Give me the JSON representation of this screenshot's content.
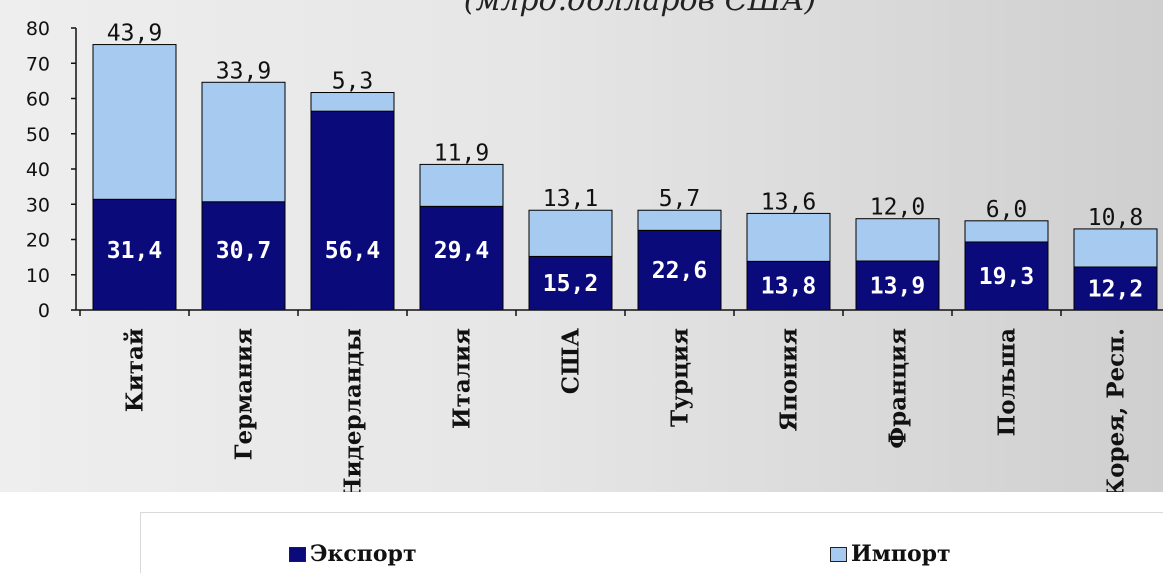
{
  "chart_data": {
    "type": "bar",
    "stacked": true,
    "title": "(млрд.долларов США)",
    "ylim": [
      0,
      80
    ],
    "yticks": [
      0,
      10,
      20,
      30,
      40,
      50,
      60,
      70,
      80
    ],
    "categories": [
      "Китай",
      "Германия",
      "Нидерланды",
      "Италия",
      "США",
      "Турция",
      "Япония",
      "Франция",
      "Польша",
      "Корея, Респ."
    ],
    "series": [
      {
        "name": "Экспорт",
        "color": "#0a0a7a",
        "values": [
          31.4,
          30.7,
          56.4,
          29.4,
          15.2,
          22.6,
          13.8,
          13.9,
          19.3,
          12.2
        ],
        "labels": [
          "31,4",
          "30,7",
          "56,4",
          "29,4",
          "15,2",
          "22,6",
          "13,8",
          "13,9",
          "19,3",
          "12,2"
        ]
      },
      {
        "name": "Импорт",
        "color": "#a6caf0",
        "values": [
          43.9,
          33.9,
          5.3,
          11.9,
          13.1,
          5.7,
          13.6,
          12.0,
          6.0,
          10.8
        ],
        "labels": [
          "43,9",
          "33,9",
          "5,3",
          "11,9",
          "13,1",
          "5,7",
          "13,6",
          "12,0",
          "6,0",
          "10,8"
        ]
      }
    ],
    "legend": "bottom"
  }
}
